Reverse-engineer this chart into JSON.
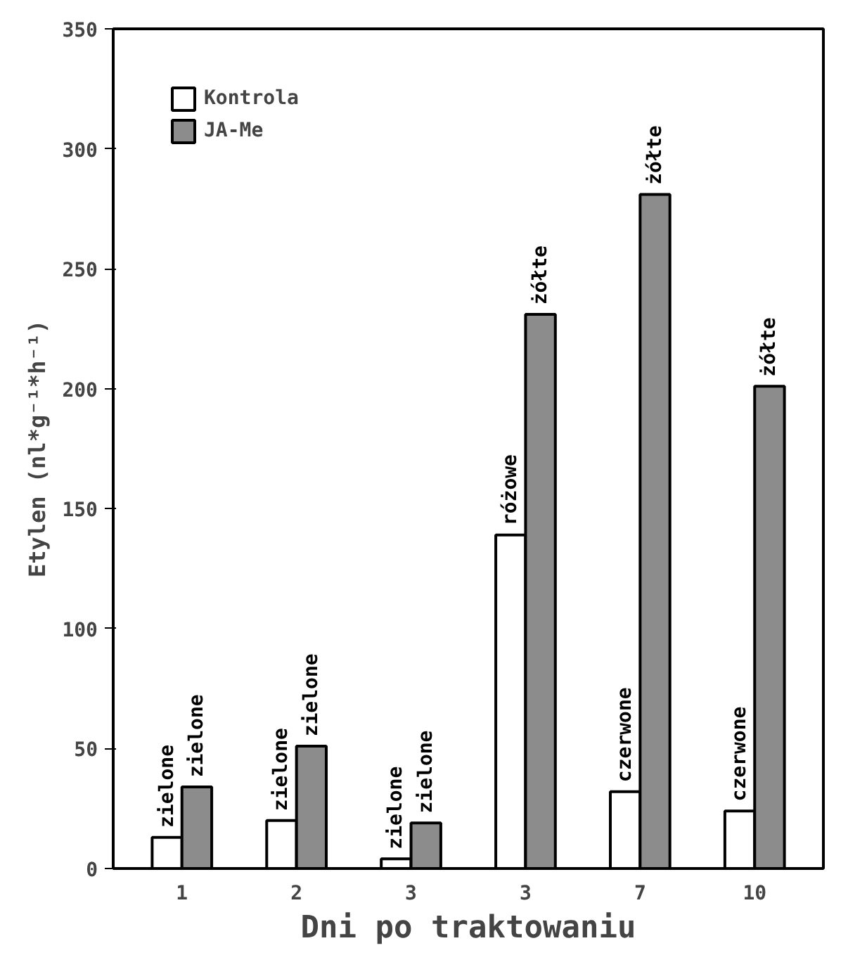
{
  "chart_data": {
    "type": "bar",
    "xlabel": "Dni po traktowaniu",
    "ylabel": "Etylen (nl*g⁻¹*h⁻¹)",
    "categories": [
      "1",
      "2",
      "3",
      "3",
      "7",
      "10"
    ],
    "series": [
      {
        "name": "Kontrola",
        "color": "#ffffff",
        "values": [
          13,
          20,
          4,
          139,
          32,
          24
        ],
        "value_labels": [
          "zielone",
          "zielone",
          "zielone",
          "różowe",
          "czerwone",
          "czerwone"
        ]
      },
      {
        "name": "JA-Me",
        "color": "#8c8c8c",
        "values": [
          34,
          51,
          19,
          231,
          281,
          201
        ],
        "value_labels": [
          "zielone",
          "zielone",
          "zielone",
          "żółte",
          "żółte",
          "żółte"
        ]
      }
    ],
    "ylim": [
      0,
      350
    ],
    "yticks": [
      0,
      50,
      100,
      150,
      200,
      250,
      300,
      350
    ],
    "grid": false,
    "legend": "top left"
  }
}
